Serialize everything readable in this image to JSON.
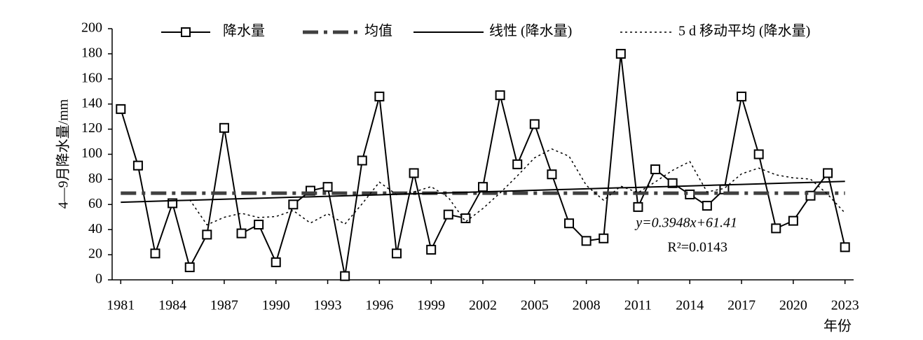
{
  "chart_data": {
    "type": "line",
    "ylabel": "4—9月降水量/mm",
    "xlabel": "年份",
    "x": [
      1981,
      1982,
      1983,
      1984,
      1985,
      1986,
      1987,
      1988,
      1989,
      1990,
      1991,
      1992,
      1993,
      1994,
      1995,
      1996,
      1997,
      1998,
      1999,
      2000,
      2001,
      2002,
      2003,
      2004,
      2005,
      2006,
      2007,
      2008,
      2009,
      2010,
      2011,
      2012,
      2013,
      2014,
      2015,
      2016,
      2017,
      2018,
      2019,
      2020,
      2021,
      2022,
      2023
    ],
    "xlim": [
      1980.5,
      2023.5
    ],
    "xticks": [
      1981,
      1984,
      1987,
      1990,
      1993,
      1996,
      1999,
      2002,
      2005,
      2008,
      2011,
      2014,
      2017,
      2020,
      2023
    ],
    "ylim": [
      0,
      200
    ],
    "yticks": [
      0,
      20,
      40,
      60,
      80,
      100,
      120,
      140,
      160,
      180,
      200
    ],
    "legend": "top",
    "series": [
      {
        "name": "降水量",
        "color": "#000000",
        "style": "marker",
        "values": [
          136,
          91,
          21,
          61,
          10,
          36,
          121,
          37,
          44,
          14,
          60,
          71,
          74,
          3,
          95,
          146,
          21,
          85,
          24,
          52,
          49,
          74,
          147,
          92,
          124,
          84,
          45,
          31,
          33,
          180,
          58,
          88,
          77,
          68,
          59,
          72,
          146,
          100,
          41,
          47,
          67,
          85,
          26
        ]
      },
      {
        "name": "均值",
        "color": "#404040",
        "style": "dashdot",
        "values": [
          69,
          69,
          69,
          69,
          69,
          69,
          69,
          69,
          69,
          69,
          69,
          69,
          69,
          69,
          69,
          69,
          69,
          69,
          69,
          69,
          69,
          69,
          69,
          69,
          69,
          69,
          69,
          69,
          69,
          69,
          69,
          69,
          69,
          69,
          69,
          69,
          69,
          69,
          69,
          69,
          69,
          69,
          69
        ]
      },
      {
        "name": "线性 (降水量)",
        "color": "#000000",
        "style": "solid",
        "values": [
          61.8,
          62.2,
          62.6,
          63.0,
          63.4,
          63.8,
          64.2,
          64.6,
          65.0,
          65.4,
          65.8,
          66.1,
          66.5,
          66.9,
          67.3,
          67.7,
          68.1,
          68.5,
          68.9,
          69.3,
          69.7,
          70.1,
          70.5,
          70.9,
          71.3,
          71.7,
          72.1,
          72.5,
          72.9,
          73.3,
          73.6,
          74.0,
          74.4,
          74.8,
          75.2,
          75.6,
          76.0,
          76.4,
          76.8,
          77.2,
          77.6,
          78.0,
          78.4
        ]
      },
      {
        "name": "5 d 移动平均 (降水量)",
        "color": "#000000",
        "style": "dotted",
        "values": [
          null,
          null,
          null,
          null,
          63.8,
          43.8,
          49.8,
          53,
          49.6,
          50.4,
          55.2,
          45.2,
          52.6,
          44.4,
          60.6,
          77.8,
          67.8,
          70,
          74.2,
          65.6,
          46.2,
          56.8,
          69.2,
          82.8,
          97.2,
          104.2,
          98.4,
          75.2,
          63.4,
          74.6,
          69.4,
          78,
          87.2,
          94.2,
          70,
          72.8,
          84.4,
          89,
          83.6,
          81.2,
          80.2,
          68,
          53.2
        ]
      }
    ],
    "annotations": [
      "y=0.3948x+61.41",
      "R²=0.0143"
    ]
  }
}
